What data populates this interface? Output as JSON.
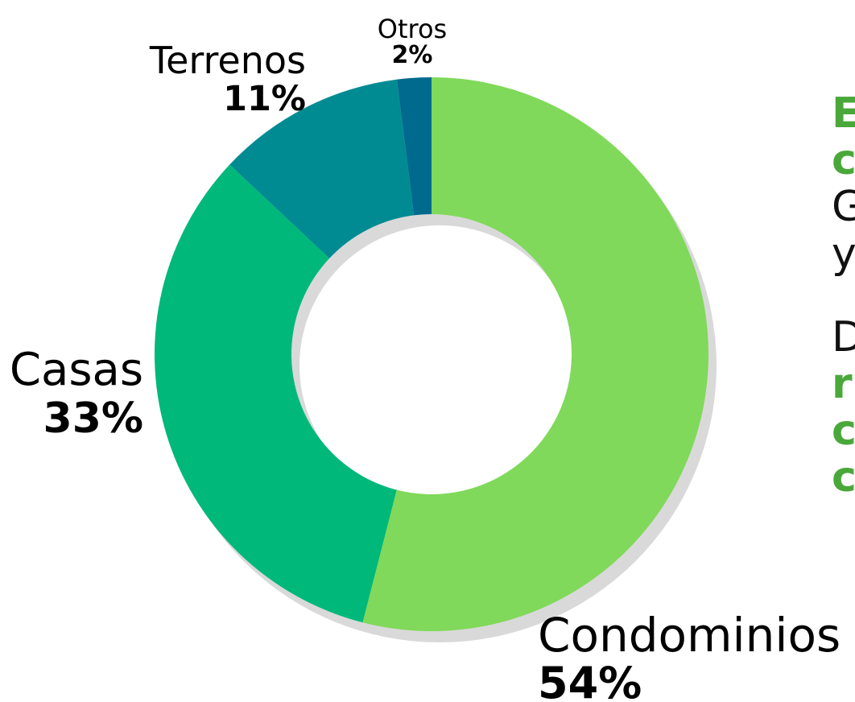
{
  "chart_data": {
    "type": "pie",
    "donut": true,
    "start_angle_deg": 0,
    "direction": "clockwise",
    "slices": [
      {
        "label": "Condominios",
        "value": 54,
        "value_label": "54%",
        "color": "#80d95a"
      },
      {
        "label": "Casas",
        "value": 33,
        "value_label": "33%",
        "color": "#00b87a"
      },
      {
        "label": "Terrenos",
        "value": 11,
        "value_label": "11%",
        "color": "#008b92"
      },
      {
        "label": "Otros",
        "value": 2,
        "value_label": "2%",
        "color": "#006a8e"
      }
    ],
    "shadow_color": "#d9d9d9"
  },
  "side_text": {
    "line1": "E",
    "line2": "c",
    "line3": "G",
    "line4": "y",
    "line5": "D",
    "line6": "r",
    "line7": "c",
    "line8": "c"
  },
  "colors": {
    "accent_green": "#4aa83a",
    "text": "#000000"
  }
}
